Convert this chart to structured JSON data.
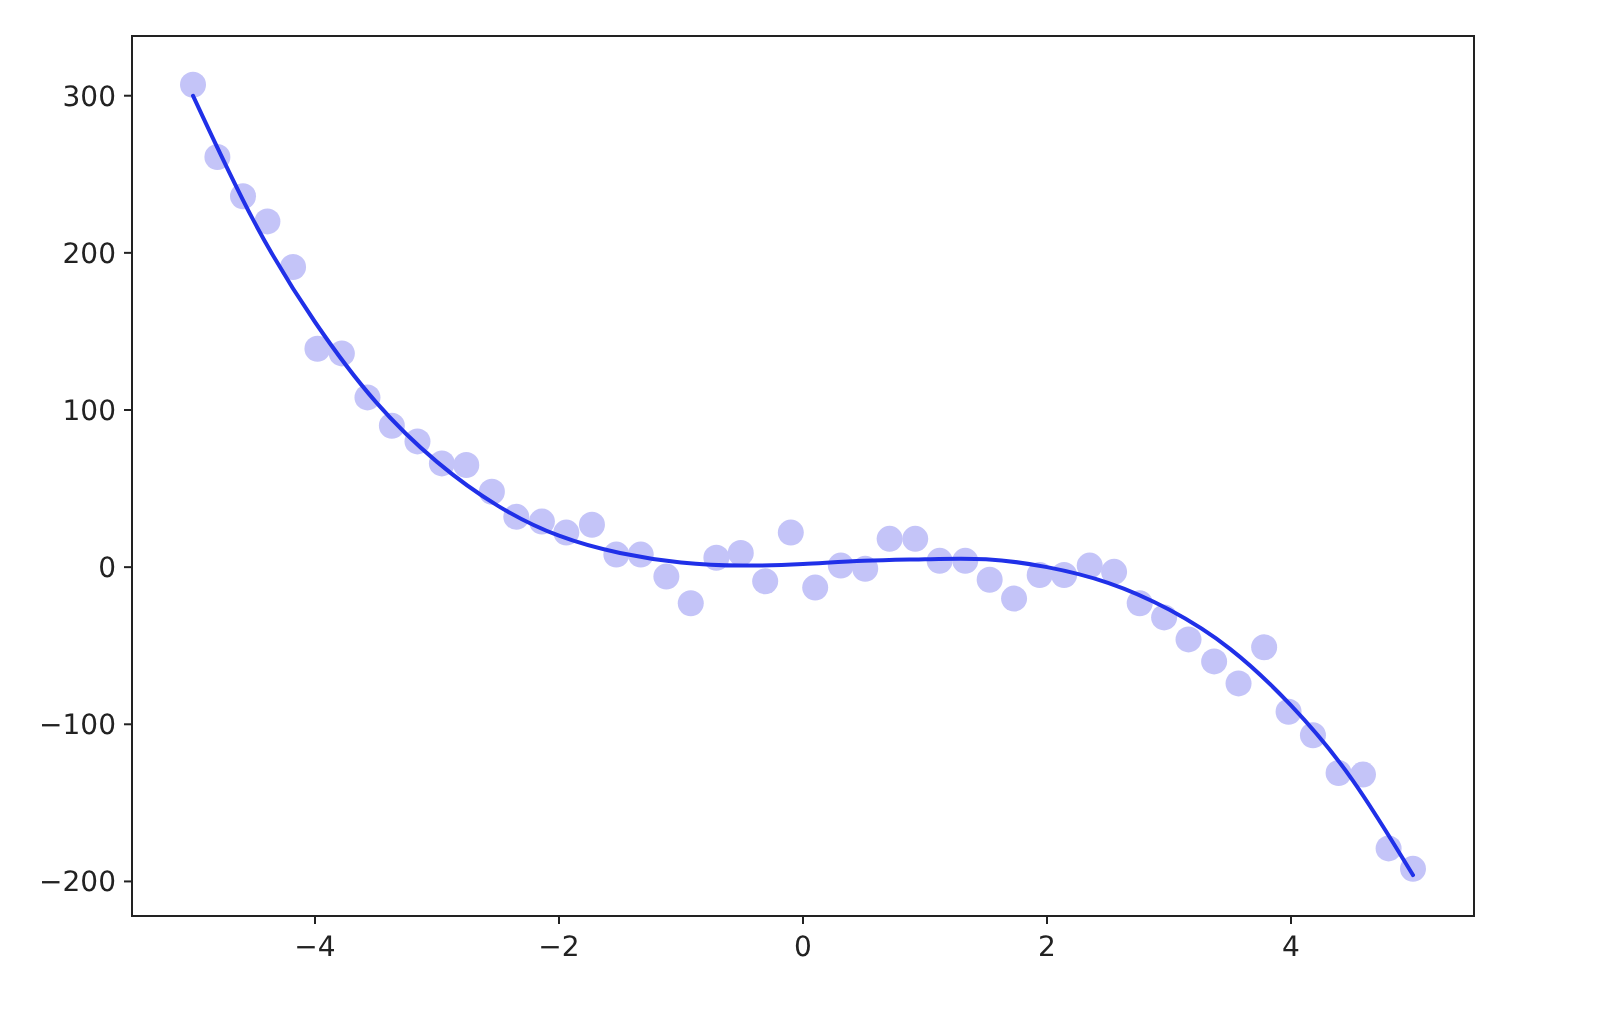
{
  "chart_data": {
    "type": "scatter",
    "xlim": [
      -5.5,
      5.5
    ],
    "ylim": [
      -222,
      338
    ],
    "xticks": [
      {
        "value": -4,
        "label": "−4"
      },
      {
        "value": -2,
        "label": "−2"
      },
      0,
      2,
      4
    ],
    "yticks": [
      {
        "value": -200,
        "label": "−200"
      },
      {
        "value": -100,
        "label": "−100"
      },
      0,
      100,
      200,
      300
    ],
    "grid": false,
    "series": [
      {
        "color": "#c4c4f8",
        "marker": "circle",
        "x": [
          -5,
          -4.8,
          -4.59,
          -4.39,
          -4.18,
          -3.98,
          -3.78,
          -3.57,
          -3.37,
          -3.16,
          -2.96,
          -2.76,
          -2.55,
          -2.35,
          -2.14,
          -1.94,
          -1.73,
          -1.53,
          -1.33,
          -1.12,
          -0.92,
          -0.71,
          -0.51,
          -0.31,
          -0.1,
          0.1,
          0.31,
          0.51,
          0.71,
          0.92,
          1.12,
          1.33,
          1.53,
          1.73,
          1.94,
          2.14,
          2.35,
          2.55,
          2.76,
          2.96,
          3.16,
          3.37,
          3.57,
          3.78,
          3.98,
          4.18,
          4.39,
          4.59,
          4.8,
          5
        ],
        "values": [
          307,
          261,
          236,
          220,
          191,
          139,
          136,
          108,
          90,
          80,
          66,
          65,
          48,
          32,
          29,
          22,
          27,
          8,
          8,
          -6,
          -23,
          6,
          9,
          -9,
          22,
          -13,
          1,
          -1,
          18,
          18,
          4,
          4,
          -8,
          -20,
          -5,
          -5,
          1,
          -3,
          -23,
          -32,
          -46,
          -60,
          -74,
          -51,
          -92,
          -107,
          -131,
          -132,
          -179,
          -192
        ]
      },
      {
        "type": "line",
        "color": "#2030e8",
        "line_style": "solid",
        "x": [
          -5,
          -4.5,
          -4,
          -3.5,
          -3,
          -2.5,
          -2,
          -1.5,
          -1,
          -0.5,
          0,
          0.5,
          1,
          1.5,
          2,
          2.5,
          3,
          3.5,
          4,
          4.5,
          5
        ],
        "values": [
          300,
          220,
          156,
          105,
          67,
          39,
          20,
          9,
          3,
          1,
          2,
          4,
          5,
          5,
          0,
          -10,
          -27,
          -52,
          -88,
          -135,
          -196
        ]
      }
    ]
  }
}
